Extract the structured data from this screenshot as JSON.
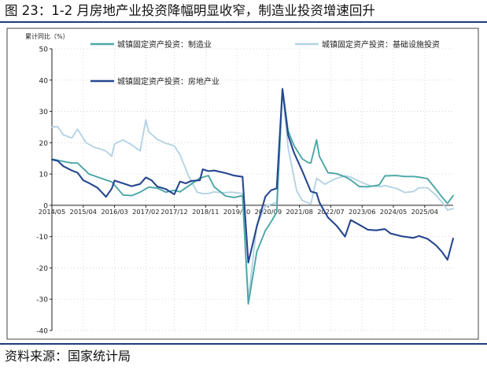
{
  "figure": {
    "title": "图 23：1-2 月房地产业投资降幅明显收窄，制造业投资增速回升",
    "source": "资料来源：国家统计局"
  },
  "chart_data": {
    "type": "line",
    "ylabel": "累计同比（%）",
    "xlabel": "",
    "ylim": [
      -40,
      50
    ],
    "yticks": [
      -40,
      -30,
      -20,
      -10,
      0,
      10,
      20,
      30,
      40,
      50
    ],
    "xlim": [
      "2014-05",
      "2026-02"
    ],
    "xticks": [
      "2014/05",
      "2015/04",
      "2016/03",
      "2017/02",
      "2017/12",
      "2018/11",
      "2019/10",
      "2020/09",
      "2021/08",
      "2022/07",
      "2023/06",
      "2024/05",
      "2025/04"
    ],
    "grid": true,
    "legend_position": "top",
    "series": [
      {
        "name": "城镇固定资产投资：制造业",
        "color": "#4aa7a5",
        "points": [
          [
            "2014-05",
            14.8
          ],
          [
            "2014-09",
            14.0
          ],
          [
            "2014-12",
            13.5
          ],
          [
            "2015-02",
            13.5
          ],
          [
            "2015-06",
            10.0
          ],
          [
            "2015-12",
            8.1
          ],
          [
            "2016-02",
            7.5
          ],
          [
            "2016-06",
            3.3
          ],
          [
            "2016-09",
            3.1
          ],
          [
            "2016-12",
            4.2
          ],
          [
            "2017-03",
            5.8
          ],
          [
            "2017-06",
            5.5
          ],
          [
            "2017-09",
            4.2
          ],
          [
            "2017-12",
            4.8
          ],
          [
            "2018-02",
            4.3
          ],
          [
            "2018-06",
            6.8
          ],
          [
            "2018-09",
            8.7
          ],
          [
            "2018-12",
            9.5
          ],
          [
            "2019-02",
            5.9
          ],
          [
            "2019-06",
            3.0
          ],
          [
            "2019-09",
            2.5
          ],
          [
            "2019-12",
            3.1
          ],
          [
            "2020-02",
            -31.5
          ],
          [
            "2020-05",
            -14.8
          ],
          [
            "2020-08",
            -8.1
          ],
          [
            "2020-10",
            -5.3
          ],
          [
            "2020-12",
            -2.2
          ],
          [
            "2021-02",
            37.3
          ],
          [
            "2021-04",
            23.8
          ],
          [
            "2021-06",
            19.2
          ],
          [
            "2021-09",
            14.8
          ],
          [
            "2021-11",
            13.7
          ],
          [
            "2021-12",
            13.5
          ],
          [
            "2022-02",
            20.9
          ],
          [
            "2022-03",
            15.6
          ],
          [
            "2022-06",
            10.4
          ],
          [
            "2022-09",
            10.1
          ],
          [
            "2022-12",
            9.1
          ],
          [
            "2023-02",
            8.1
          ],
          [
            "2023-05",
            6.0
          ],
          [
            "2023-08",
            5.9
          ],
          [
            "2023-12",
            6.5
          ],
          [
            "2024-02",
            9.4
          ],
          [
            "2024-06",
            9.5
          ],
          [
            "2024-09",
            9.2
          ],
          [
            "2024-12",
            9.2
          ],
          [
            "2025-02",
            9.0
          ],
          [
            "2025-05",
            8.5
          ],
          [
            "2025-08",
            5.1
          ],
          [
            "2025-10",
            2.7
          ],
          [
            "2025-12",
            0.6
          ],
          [
            "2026-02",
            3.1
          ]
        ]
      },
      {
        "name": "城镇固定资产投资：基础设施投资",
        "color": "#b4d3e4",
        "points": [
          [
            "2014-05",
            25.0
          ],
          [
            "2014-07",
            25.1
          ],
          [
            "2014-09",
            22.5
          ],
          [
            "2014-12",
            21.5
          ],
          [
            "2015-02",
            24.3
          ],
          [
            "2015-05",
            20.0
          ],
          [
            "2015-08",
            18.5
          ],
          [
            "2015-10",
            18.0
          ],
          [
            "2015-12",
            17.3
          ],
          [
            "2016-02",
            15.7
          ],
          [
            "2016-03",
            19.6
          ],
          [
            "2016-06",
            20.9
          ],
          [
            "2016-09",
            19.3
          ],
          [
            "2016-12",
            17.4
          ],
          [
            "2017-02",
            27.3
          ],
          [
            "2017-03",
            23.5
          ],
          [
            "2017-06",
            21.1
          ],
          [
            "2017-09",
            19.8
          ],
          [
            "2017-12",
            19.0
          ],
          [
            "2018-02",
            16.1
          ],
          [
            "2018-05",
            9.4
          ],
          [
            "2018-08",
            4.2
          ],
          [
            "2018-10",
            3.7
          ],
          [
            "2018-12",
            3.8
          ],
          [
            "2019-02",
            4.3
          ],
          [
            "2019-05",
            4.0
          ],
          [
            "2019-08",
            4.2
          ],
          [
            "2019-12",
            3.8
          ],
          [
            "2020-02",
            -30.3
          ],
          [
            "2020-05",
            -6.3
          ],
          [
            "2020-08",
            -0.3
          ],
          [
            "2020-12",
            0.9
          ],
          [
            "2021-02",
            36.6
          ],
          [
            "2021-04",
            18.4
          ],
          [
            "2021-07",
            4.6
          ],
          [
            "2021-09",
            1.5
          ],
          [
            "2021-12",
            0.4
          ],
          [
            "2022-02",
            8.6
          ],
          [
            "2022-05",
            6.7
          ],
          [
            "2022-08",
            8.3
          ],
          [
            "2022-12",
            9.4
          ],
          [
            "2023-02",
            9.0
          ],
          [
            "2023-06",
            7.2
          ],
          [
            "2023-09",
            6.2
          ],
          [
            "2023-12",
            5.9
          ],
          [
            "2024-02",
            6.3
          ],
          [
            "2024-06",
            5.4
          ],
          [
            "2024-09",
            4.1
          ],
          [
            "2024-12",
            4.4
          ],
          [
            "2025-02",
            5.6
          ],
          [
            "2025-05",
            5.6
          ],
          [
            "2025-08",
            3.2
          ],
          [
            "2025-10",
            1.1
          ],
          [
            "2025-12",
            -1.5
          ],
          [
            "2026-02",
            -1.0
          ]
        ]
      },
      {
        "name": "城镇固定资产投资：房地产业",
        "color": "#26478f",
        "points": [
          [
            "2014-05",
            14.6
          ],
          [
            "2014-07",
            14.2
          ],
          [
            "2014-09",
            12.5
          ],
          [
            "2014-12",
            11.1
          ],
          [
            "2015-02",
            10.4
          ],
          [
            "2015-04",
            8.0
          ],
          [
            "2015-06",
            7.1
          ],
          [
            "2015-09",
            5.6
          ],
          [
            "2015-12",
            2.7
          ],
          [
            "2016-02",
            5.3
          ],
          [
            "2016-03",
            7.9
          ],
          [
            "2016-06",
            7.0
          ],
          [
            "2016-09",
            6.1
          ],
          [
            "2016-12",
            6.8
          ],
          [
            "2017-02",
            8.9
          ],
          [
            "2017-04",
            8.0
          ],
          [
            "2017-06",
            6.0
          ],
          [
            "2017-09",
            5.2
          ],
          [
            "2017-12",
            3.5
          ],
          [
            "2018-02",
            7.6
          ],
          [
            "2018-04",
            7.0
          ],
          [
            "2018-06",
            7.8
          ],
          [
            "2018-09",
            8.0
          ],
          [
            "2018-10",
            11.5
          ],
          [
            "2018-12",
            10.9
          ],
          [
            "2019-02",
            11.1
          ],
          [
            "2019-06",
            10.3
          ],
          [
            "2019-09",
            9.5
          ],
          [
            "2019-12",
            9.1
          ],
          [
            "2020-02",
            -18.3
          ],
          [
            "2020-05",
            -6.8
          ],
          [
            "2020-08",
            2.8
          ],
          [
            "2020-10",
            4.8
          ],
          [
            "2020-12",
            5.4
          ],
          [
            "2021-02",
            37.1
          ],
          [
            "2021-04",
            22.4
          ],
          [
            "2021-06",
            17.0
          ],
          [
            "2021-09",
            10.9
          ],
          [
            "2021-12",
            4.4
          ],
          [
            "2022-02",
            3.9
          ],
          [
            "2022-03",
            0.9
          ],
          [
            "2022-06",
            -3.9
          ],
          [
            "2022-09",
            -6.5
          ],
          [
            "2022-12",
            -10.0
          ],
          [
            "2023-02",
            -4.7
          ],
          [
            "2023-05",
            -6.2
          ],
          [
            "2023-08",
            -7.8
          ],
          [
            "2023-11",
            -8.0
          ],
          [
            "2024-02",
            -7.6
          ],
          [
            "2024-04",
            -9.0
          ],
          [
            "2024-08",
            -9.9
          ],
          [
            "2024-12",
            -10.4
          ],
          [
            "2025-02",
            -9.8
          ],
          [
            "2025-05",
            -10.7
          ],
          [
            "2025-08",
            -12.8
          ],
          [
            "2025-10",
            -14.8
          ],
          [
            "2025-12",
            -17.4
          ],
          [
            "2026-02",
            -10.6
          ]
        ]
      }
    ]
  }
}
